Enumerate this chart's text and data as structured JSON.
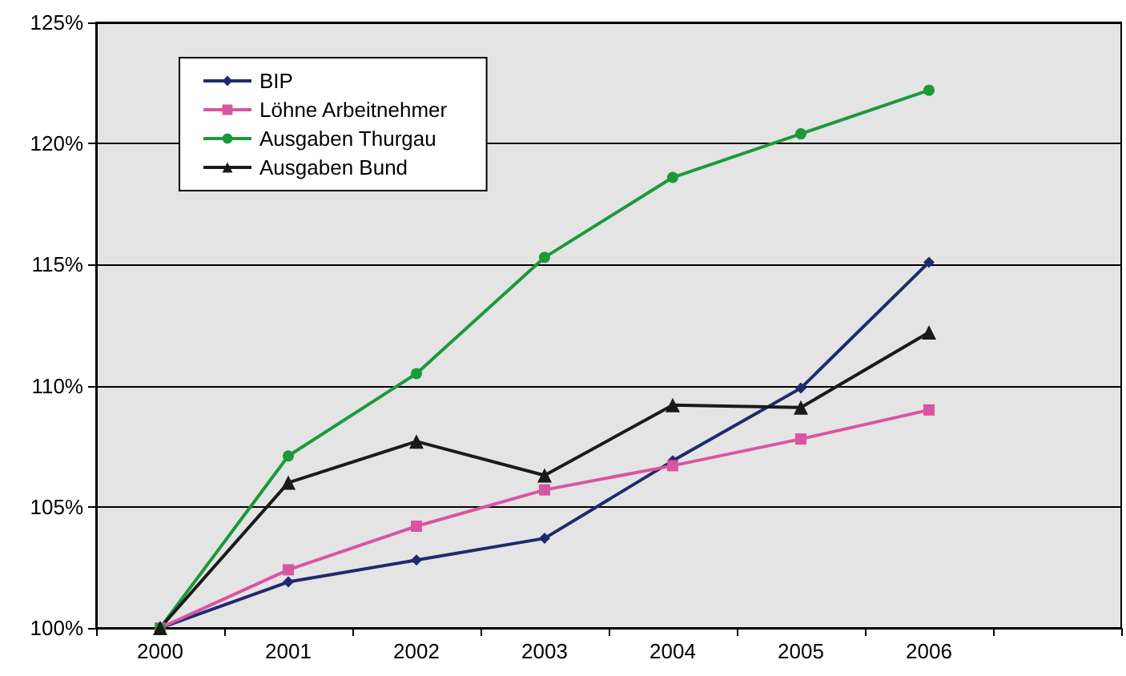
{
  "chart_data": {
    "type": "line",
    "categories": [
      "2000",
      "2001",
      "2002",
      "2003",
      "2004",
      "2005",
      "2006",
      null
    ],
    "series": [
      {
        "name": "BIP",
        "color": "#1f2a6e",
        "marker": "diamond",
        "values": [
          100,
          101.9,
          102.8,
          103.7,
          106.9,
          109.9,
          115.1,
          null
        ]
      },
      {
        "name": "Löhne Arbeitnehmer",
        "color": "#d9559f",
        "marker": "square",
        "values": [
          100,
          102.4,
          104.2,
          105.7,
          106.7,
          107.8,
          109.0,
          null
        ]
      },
      {
        "name": "Ausgaben Thurgau",
        "color": "#1a9a3a",
        "marker": "circle",
        "values": [
          100,
          107.1,
          110.5,
          115.3,
          118.6,
          120.4,
          122.2,
          null
        ]
      },
      {
        "name": "Ausgaben Bund",
        "color": "#1a1a1a",
        "marker": "triangle",
        "values": [
          100,
          106.0,
          107.7,
          106.3,
          109.2,
          109.1,
          112.2,
          null
        ]
      }
    ],
    "ylim": [
      100,
      125
    ],
    "yticks": [
      {
        "value": 100,
        "label": "100%"
      },
      {
        "value": 105,
        "label": "105%"
      },
      {
        "value": 110,
        "label": "110%"
      },
      {
        "value": 115,
        "label": "115%"
      },
      {
        "value": 120,
        "label": "120%"
      },
      {
        "value": 125,
        "label": "125%"
      }
    ],
    "grid": "y",
    "legend": "top left"
  }
}
